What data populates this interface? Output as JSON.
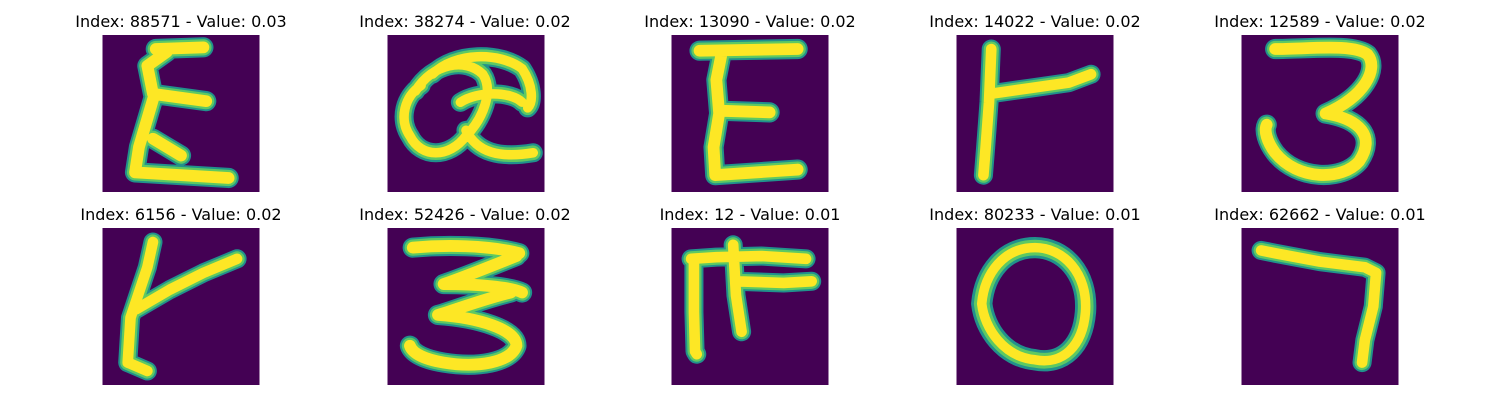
{
  "colors": {
    "background": "#440154",
    "stroke_edge": "#21918c",
    "stroke_mid": "#5ec962",
    "stroke_core": "#fde725"
  },
  "panels": [
    {
      "title": "Index: 88571 - Value: 0.03",
      "glyph_icon": "handwritten-epsilon-glyph"
    },
    {
      "title": "Index: 38274 - Value: 0.02",
      "glyph_icon": "handwritten-looped-a-glyph"
    },
    {
      "title": "Index: 13090 - Value: 0.02",
      "glyph_icon": "handwritten-E-glyph"
    },
    {
      "title": "Index: 14022 - Value: 0.02",
      "glyph_icon": "handwritten-r-glyph"
    },
    {
      "title": "Index: 12589 - Value: 0.02",
      "glyph_icon": "handwritten-3-glyph"
    },
    {
      "title": "Index: 6156 - Value: 0.02",
      "glyph_icon": "handwritten-t-glyph"
    },
    {
      "title": "Index: 52426 - Value: 0.02",
      "glyph_icon": "handwritten-3-glyph"
    },
    {
      "title": "Index: 12 - Value: 0.01",
      "glyph_icon": "handwritten-F-glyph"
    },
    {
      "title": "Index: 80233 - Value: 0.01",
      "glyph_icon": "handwritten-0-glyph"
    },
    {
      "title": "Index: 62662 - Value: 0.01",
      "glyph_icon": "handwritten-7-glyph"
    }
  ]
}
